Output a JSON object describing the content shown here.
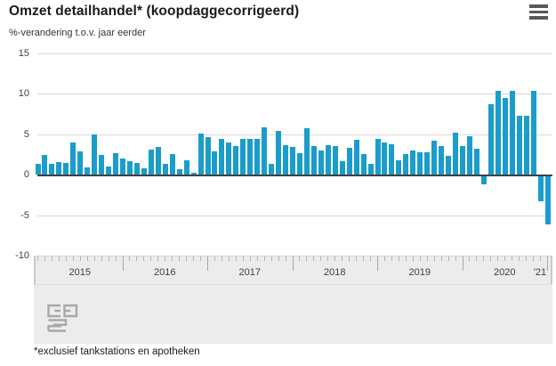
{
  "header": {
    "title": "Omzet detailhandel* (koopdaggecorrigeerd)",
    "menu_icon": "hamburger-menu-icon"
  },
  "chart": {
    "subtitle": "%-verandering t.o.v. jaar eerder",
    "footnote": "*exclusief tankstations en apotheken"
  },
  "chart_data": {
    "type": "bar",
    "title": "Omzet detailhandel* (koopdaggecorrigeerd)",
    "ylabel": "%-verandering t.o.v. jaar eerder",
    "ylim": [
      -10,
      15
    ],
    "yticks": [
      15,
      10,
      5,
      0,
      -5,
      -10
    ],
    "grid": "horizontal",
    "bar_color": "#1a9dca",
    "year_labels": [
      "2015",
      "2016",
      "2017",
      "2018",
      "2019",
      "2020",
      "'21"
    ],
    "series_by_year": [
      {
        "year": "2015",
        "values": [
          1.3,
          2.5,
          1.3,
          1.6,
          1.5,
          4.0,
          2.9,
          0.9,
          5.0,
          2.4,
          1.0,
          2.7
        ]
      },
      {
        "year": "2016",
        "values": [
          2.0,
          1.7,
          1.5,
          0.8,
          3.1,
          3.4,
          1.3,
          2.6,
          0.7,
          1.8,
          0.2,
          5.1
        ]
      },
      {
        "year": "2017",
        "values": [
          4.6,
          2.9,
          4.4,
          4.0,
          3.6,
          4.4,
          4.4,
          4.4,
          5.9,
          1.3,
          5.4,
          3.7
        ]
      },
      {
        "year": "2018",
        "values": [
          3.4,
          2.7,
          5.8,
          3.6,
          3.0,
          3.7,
          3.5,
          1.7,
          3.3,
          4.3,
          2.6,
          1.3
        ]
      },
      {
        "year": "2019",
        "values": [
          4.4,
          4.0,
          3.8,
          1.8,
          2.6,
          3.0,
          2.8,
          2.8,
          4.2,
          3.5,
          2.3,
          5.2
        ]
      },
      {
        "year": "2020",
        "values": [
          3.5,
          4.8,
          3.2,
          -1.0,
          8.7,
          10.4,
          9.5,
          10.4,
          7.3,
          7.3,
          10.4,
          -3.1
        ]
      },
      {
        "year": "2021",
        "values": [
          -5.9
        ]
      }
    ]
  },
  "footer": {
    "logo": "cbs-logo"
  }
}
